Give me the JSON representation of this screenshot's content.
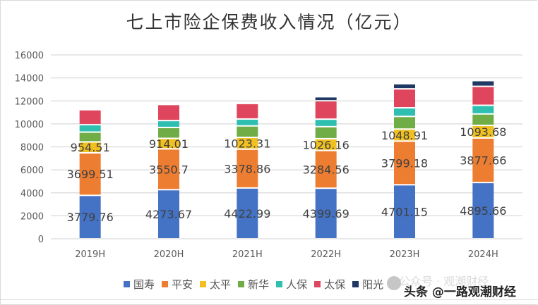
{
  "chart_data": {
    "type": "bar",
    "stacked": true,
    "title": "七上市险企保费收入情况（亿元）",
    "xlabel": "",
    "ylabel": "",
    "ylim": [
      0,
      16000
    ],
    "yticks": [
      0,
      2000,
      4000,
      6000,
      8000,
      10000,
      12000,
      14000,
      16000
    ],
    "grid": true,
    "legend_position": "bottom",
    "categories": [
      "2019H",
      "2020H",
      "2021H",
      "2022H",
      "2023H",
      "2024H"
    ],
    "series": [
      {
        "name": "国寿",
        "color": "#4472c4",
        "values": [
          3779.76,
          4273.67,
          4422.99,
          4399.69,
          4701.15,
          4895.66
        ],
        "labels": [
          "3779.76",
          "4273.67",
          "4422.99",
          "4399.69",
          "4701.15",
          "4895.66"
        ]
      },
      {
        "name": "平安",
        "color": "#ed7d31",
        "values": [
          3699.51,
          3550.7,
          3378.86,
          3284.56,
          3799.18,
          3877.66
        ],
        "labels": [
          "3699.51",
          "3550.7",
          "3378.86",
          "3284.56",
          "3799.18",
          "3877.66"
        ]
      },
      {
        "name": "太平",
        "color": "#f0c020",
        "values": [
          954.51,
          914.01,
          1023.31,
          1026.16,
          1048.91,
          1093.68
        ],
        "labels": [
          "954.51",
          "914.01",
          "1023.31",
          "1026.16",
          "1048.91",
          "1093.68"
        ]
      },
      {
        "name": "新华",
        "color": "#70ad47",
        "values": [
          850,
          950,
          1000,
          1050,
          1100,
          1000
        ]
      },
      {
        "name": "人保",
        "color": "#2ebfb0",
        "values": [
          650,
          600,
          600,
          650,
          750,
          750
        ]
      },
      {
        "name": "太保",
        "color": "#e0455e",
        "values": [
          1300,
          1400,
          1350,
          1600,
          1650,
          1650
        ]
      },
      {
        "name": "阳光",
        "color": "#203864",
        "values": [
          0,
          0,
          0,
          350,
          450,
          500
        ]
      }
    ]
  },
  "watermark": {
    "line1": "公众号 · 观潮财经",
    "line2": "头条 @一路观潮财经"
  }
}
